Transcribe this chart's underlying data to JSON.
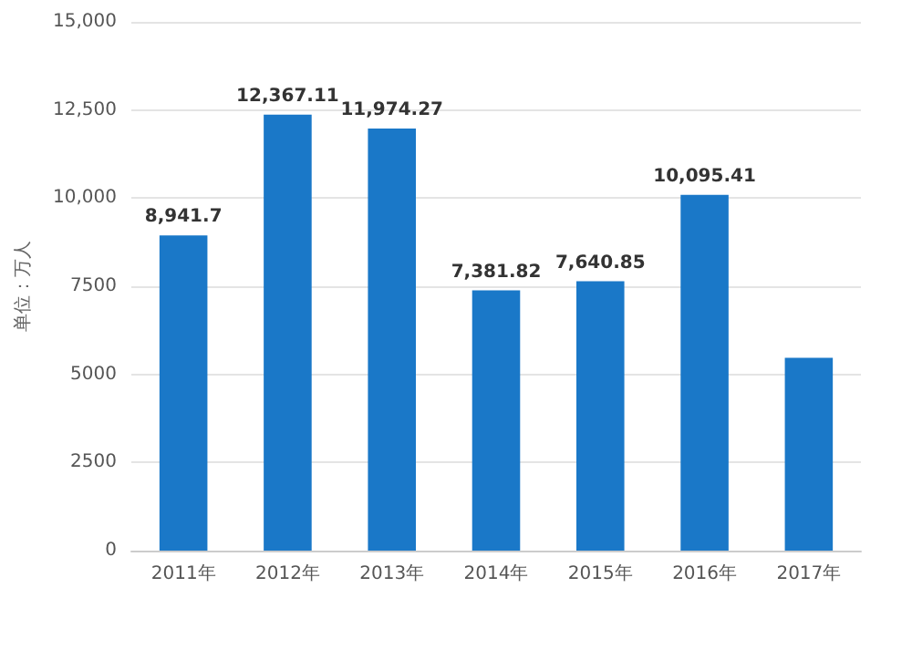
{
  "chart_data": {
    "type": "bar",
    "ylabel": "单位：万人",
    "categories": [
      "2011年",
      "2012年",
      "2013年",
      "2014年",
      "2015年",
      "2016年",
      "2017年"
    ],
    "series": [
      {
        "color": "#1a78c8",
        "values": [
          8941.7,
          12367.11,
          11974.27,
          7381.82,
          7640.85,
          10095.41,
          5470
        ],
        "value_labels": [
          "8,941.7",
          "12,367.11",
          "11,974.27",
          "7,381.82",
          "7,640.85",
          "10,095.41",
          null
        ]
      }
    ],
    "ylim": [
      0,
      15000
    ],
    "yticks": [
      {
        "value": 0,
        "label": "0"
      },
      {
        "value": 2500,
        "label": "2500"
      },
      {
        "value": 5000,
        "label": "5000"
      },
      {
        "value": 7500,
        "label": "7500"
      },
      {
        "value": 10000,
        "label": "10,000"
      },
      {
        "value": 12500,
        "label": "12,500"
      },
      {
        "value": 15000,
        "label": "15,000"
      }
    ],
    "grid": "y",
    "legend": false
  }
}
